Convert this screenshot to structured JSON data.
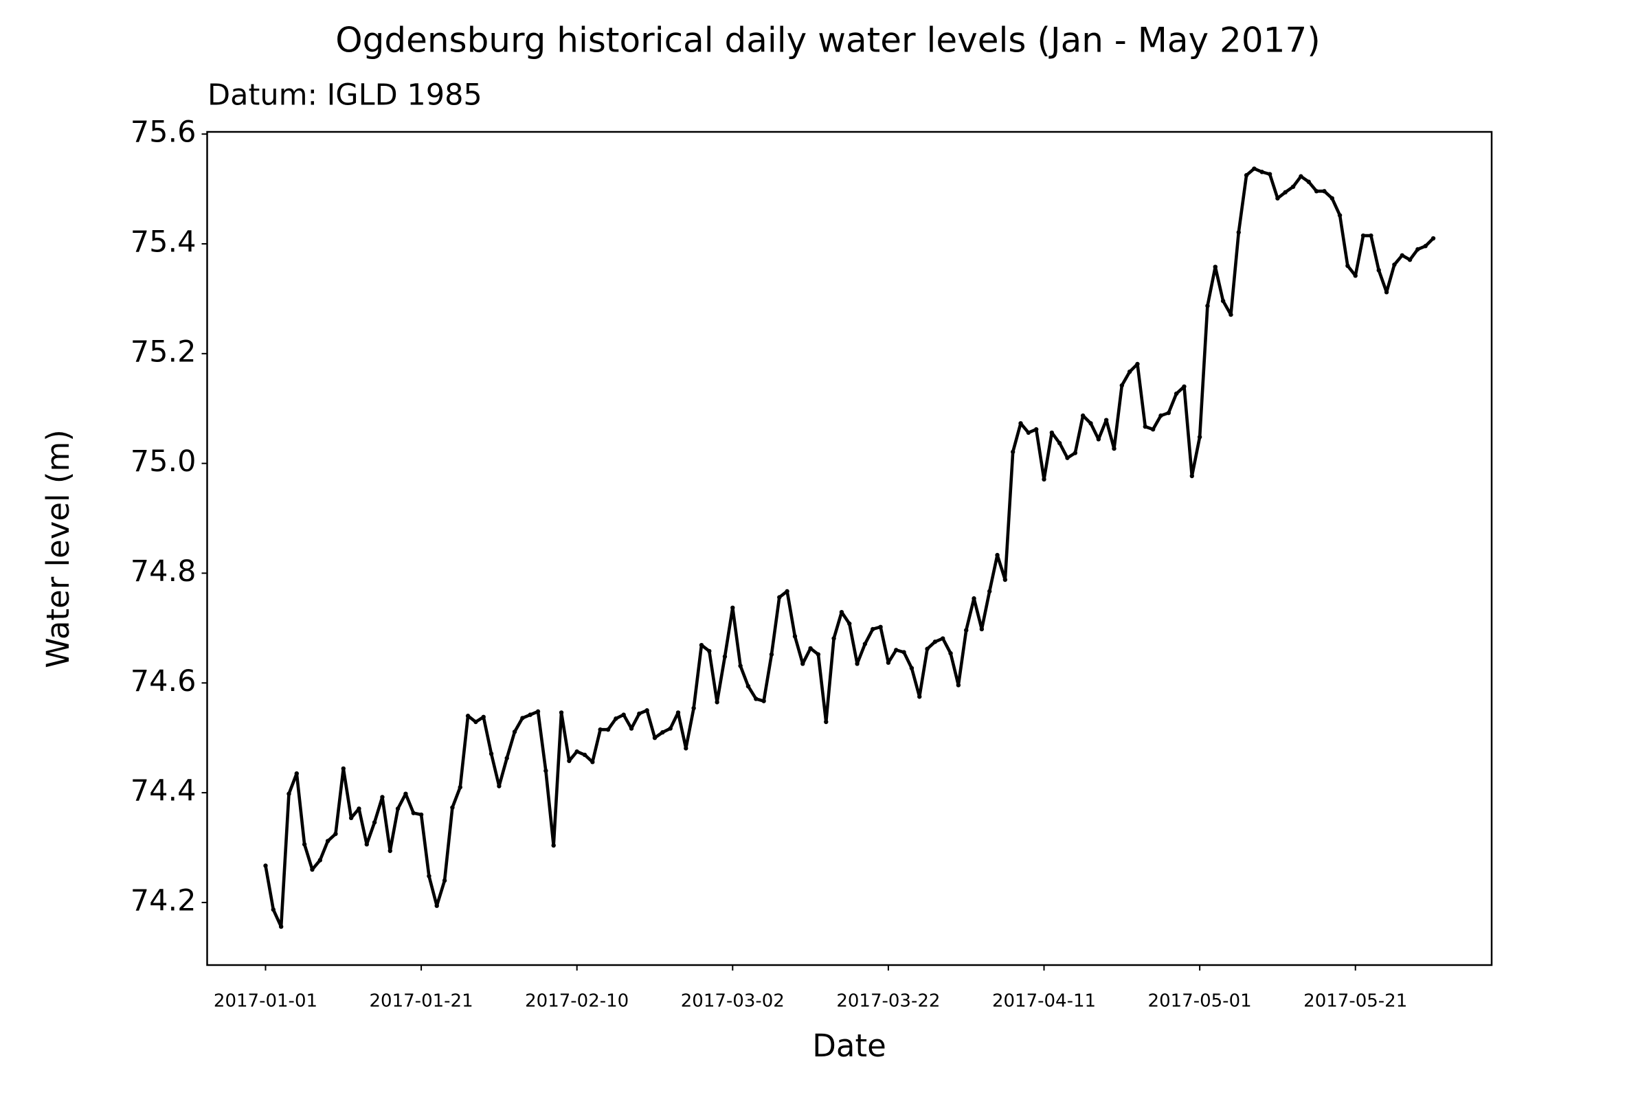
{
  "chart_data": {
    "type": "line",
    "title": "Ogdensburg historical daily water levels (Jan - May 2017)",
    "subtitle": "Datum: IGLD 1985",
    "x_label": "Date",
    "y_label": "Water level (m)",
    "color": "#000000",
    "markers": true,
    "grid": false,
    "x": [
      "2017-01-01",
      "2017-01-02",
      "2017-01-03",
      "2017-01-04",
      "2017-01-05",
      "2017-01-06",
      "2017-01-07",
      "2017-01-08",
      "2017-01-09",
      "2017-01-10",
      "2017-01-11",
      "2017-01-12",
      "2017-01-13",
      "2017-01-14",
      "2017-01-15",
      "2017-01-16",
      "2017-01-17",
      "2017-01-18",
      "2017-01-19",
      "2017-01-20",
      "2017-01-21",
      "2017-01-22",
      "2017-01-23",
      "2017-01-24",
      "2017-01-25",
      "2017-01-26",
      "2017-01-27",
      "2017-01-28",
      "2017-01-29",
      "2017-01-30",
      "2017-01-31",
      "2017-02-01",
      "2017-02-02",
      "2017-02-03",
      "2017-02-04",
      "2017-02-05",
      "2017-02-06",
      "2017-02-07",
      "2017-02-08",
      "2017-02-09",
      "2017-02-10",
      "2017-02-11",
      "2017-02-12",
      "2017-02-13",
      "2017-02-14",
      "2017-02-15",
      "2017-02-16",
      "2017-02-17",
      "2017-02-18",
      "2017-02-19",
      "2017-02-20",
      "2017-02-21",
      "2017-02-22",
      "2017-02-23",
      "2017-02-24",
      "2017-02-25",
      "2017-02-26",
      "2017-02-27",
      "2017-02-28",
      "2017-03-01",
      "2017-03-02",
      "2017-03-03",
      "2017-03-04",
      "2017-03-05",
      "2017-03-06",
      "2017-03-07",
      "2017-03-08",
      "2017-03-09",
      "2017-03-10",
      "2017-03-11",
      "2017-03-12",
      "2017-03-13",
      "2017-03-14",
      "2017-03-15",
      "2017-03-16",
      "2017-03-17",
      "2017-03-18",
      "2017-03-19",
      "2017-03-20",
      "2017-03-21",
      "2017-03-22",
      "2017-03-23",
      "2017-03-24",
      "2017-03-25",
      "2017-03-26",
      "2017-03-27",
      "2017-03-28",
      "2017-03-29",
      "2017-03-30",
      "2017-03-31",
      "2017-04-01",
      "2017-04-02",
      "2017-04-03",
      "2017-04-04",
      "2017-04-05",
      "2017-04-06",
      "2017-04-07",
      "2017-04-08",
      "2017-04-09",
      "2017-04-10",
      "2017-04-11",
      "2017-04-12",
      "2017-04-13",
      "2017-04-14",
      "2017-04-15",
      "2017-04-16",
      "2017-04-17",
      "2017-04-18",
      "2017-04-19",
      "2017-04-20",
      "2017-04-21",
      "2017-04-22",
      "2017-04-23",
      "2017-04-24",
      "2017-04-25",
      "2017-04-26",
      "2017-04-27",
      "2017-04-28",
      "2017-04-29",
      "2017-04-30",
      "2017-05-01",
      "2017-05-02",
      "2017-05-03",
      "2017-05-04",
      "2017-05-05",
      "2017-05-06",
      "2017-05-07",
      "2017-05-08",
      "2017-05-09",
      "2017-05-10",
      "2017-05-11",
      "2017-05-12",
      "2017-05-13",
      "2017-05-14",
      "2017-05-15",
      "2017-05-16",
      "2017-05-17",
      "2017-05-18",
      "2017-05-19",
      "2017-05-20",
      "2017-05-21",
      "2017-05-22",
      "2017-05-23",
      "2017-05-24",
      "2017-05-25",
      "2017-05-26",
      "2017-05-27",
      "2017-05-28",
      "2017-05-29",
      "2017-05-30",
      "2017-05-31"
    ],
    "values": [
      74.267,
      74.187,
      74.156,
      74.398,
      74.435,
      74.306,
      74.26,
      74.277,
      74.312,
      74.325,
      74.444,
      74.354,
      74.371,
      74.306,
      74.346,
      74.392,
      74.294,
      74.371,
      74.398,
      74.363,
      74.36,
      74.248,
      74.194,
      74.24,
      74.373,
      74.41,
      74.54,
      74.529,
      74.538,
      74.471,
      74.412,
      74.463,
      74.511,
      74.536,
      74.542,
      74.548,
      74.44,
      74.304,
      74.546,
      74.458,
      74.475,
      74.469,
      74.456,
      74.515,
      74.515,
      74.535,
      74.542,
      74.517,
      74.544,
      74.55,
      74.5,
      74.51,
      74.517,
      74.546,
      74.481,
      74.554,
      74.669,
      74.658,
      74.565,
      74.648,
      74.737,
      74.631,
      74.594,
      74.571,
      74.567,
      74.652,
      74.756,
      74.767,
      74.685,
      74.635,
      74.663,
      74.652,
      74.529,
      74.681,
      74.729,
      74.708,
      74.635,
      74.671,
      74.698,
      74.702,
      74.637,
      74.66,
      74.656,
      74.627,
      74.575,
      74.662,
      74.675,
      74.681,
      74.654,
      74.596,
      74.696,
      74.754,
      74.698,
      74.767,
      74.833,
      74.788,
      75.021,
      75.073,
      75.056,
      75.062,
      74.971,
      75.056,
      75.037,
      75.01,
      75.019,
      75.087,
      75.073,
      75.044,
      75.079,
      75.027,
      75.142,
      75.167,
      75.181,
      75.067,
      75.062,
      75.087,
      75.092,
      75.127,
      75.14,
      74.977,
      75.048,
      75.287,
      75.358,
      75.296,
      75.271,
      75.421,
      75.525,
      75.537,
      75.531,
      75.527,
      75.483,
      75.494,
      75.504,
      75.523,
      75.513,
      75.496,
      75.496,
      75.483,
      75.452,
      75.36,
      75.342,
      75.415,
      75.415,
      75.352,
      75.312,
      75.362,
      75.379,
      75.371,
      75.39,
      75.396,
      75.41
    ],
    "xlim": [
      "2016-12-24T12:00:00Z",
      "2017-06-07T12:00:00Z"
    ],
    "xticks": [
      "2017-01-01",
      "2017-01-21",
      "2017-02-10",
      "2017-03-02",
      "2017-03-22",
      "2017-04-11",
      "2017-05-01",
      "2017-05-21"
    ],
    "ylim": [
      74.086,
      75.604
    ],
    "yticks": [
      {
        "value": 74.2,
        "label": "74.2"
      },
      {
        "value": 74.4,
        "label": "74.4"
      },
      {
        "value": 74.6,
        "label": "74.6"
      },
      {
        "value": 74.8,
        "label": "74.8"
      },
      {
        "value": 75,
        "label": "75.0"
      },
      {
        "value": 75.2,
        "label": "75.2"
      },
      {
        "value": 75.4,
        "label": "75.4"
      },
      {
        "value": 75.6,
        "label": "75.6"
      }
    ]
  }
}
